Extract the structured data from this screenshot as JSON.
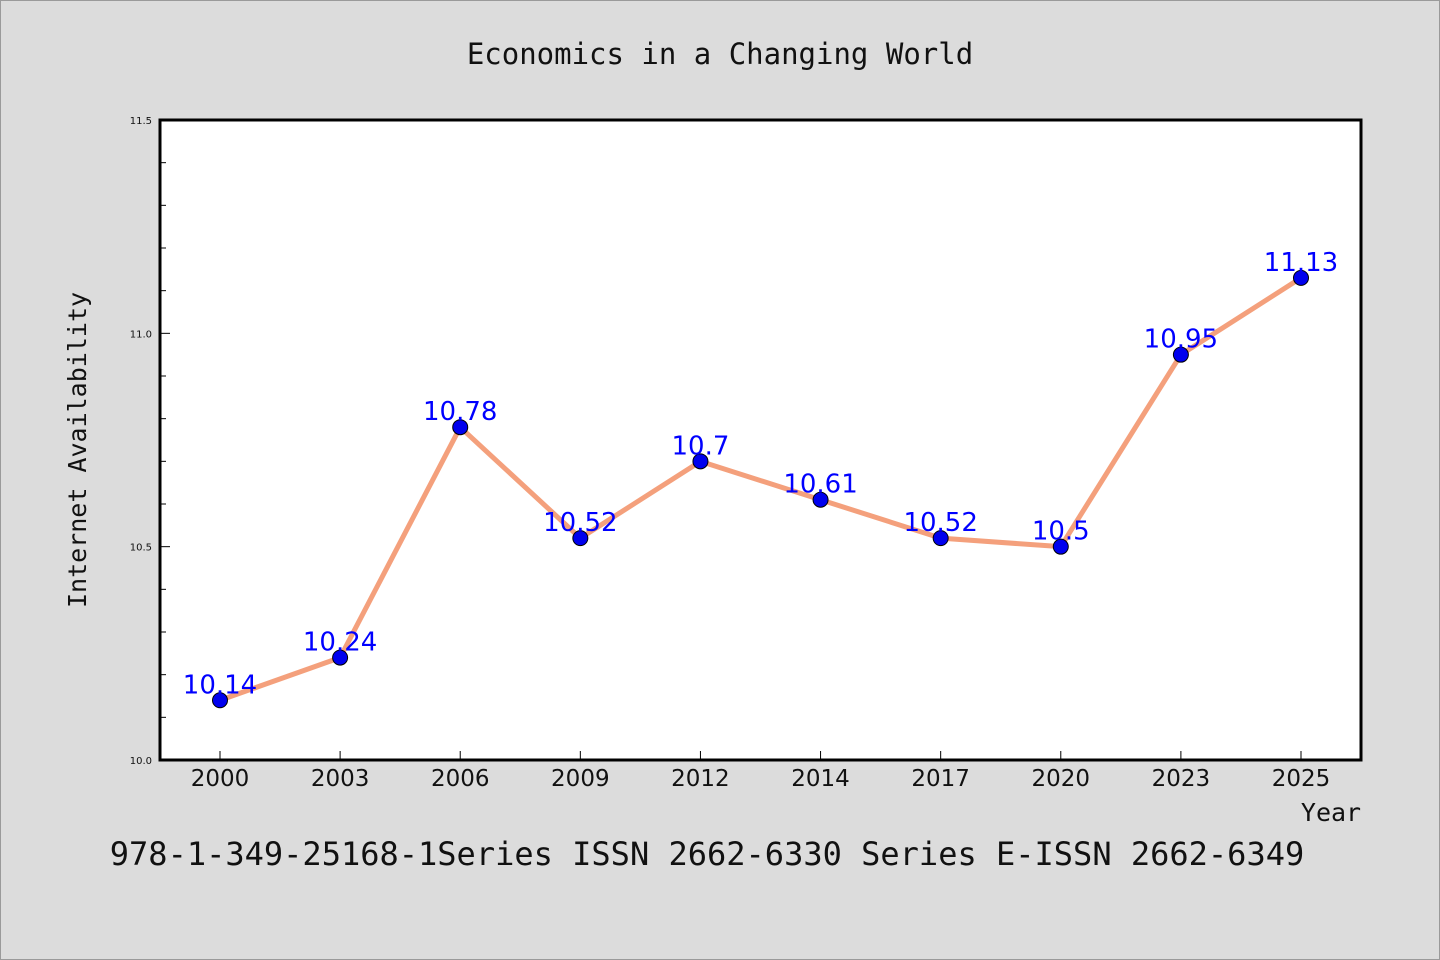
{
  "chart_data": {
    "type": "line",
    "title": "Economics in a Changing World",
    "subtitle": "978-1-349-25168-1Series ISSN 2662-6330 Series E-ISSN 2662-6349",
    "xlabel": "Year",
    "ylabel": "Internet Availability",
    "categories": [
      "2000",
      "2003",
      "2006",
      "2009",
      "2012",
      "2014",
      "2017",
      "2020",
      "2023",
      "2025"
    ],
    "values": [
      10.14,
      10.24,
      10.78,
      10.52,
      10.7,
      10.61,
      10.52,
      10.5,
      10.95,
      11.13
    ],
    "data_labels": [
      "10.14",
      "10.24",
      "10.78",
      "10.52",
      "10.7",
      "10.61",
      "10.52",
      "10.5",
      "10.95",
      "11.13"
    ],
    "ylim": [
      10.0,
      11.5
    ],
    "y_ticks": [
      "10.0",
      "10.5",
      "11.0",
      "11.5"
    ],
    "grid": false,
    "legend": "none",
    "colors": {
      "line": "#f4a07c",
      "marker": "#0000ee",
      "label": "#0000ff",
      "background": "#dcdcdc",
      "plot_background": "#ffffff"
    }
  }
}
